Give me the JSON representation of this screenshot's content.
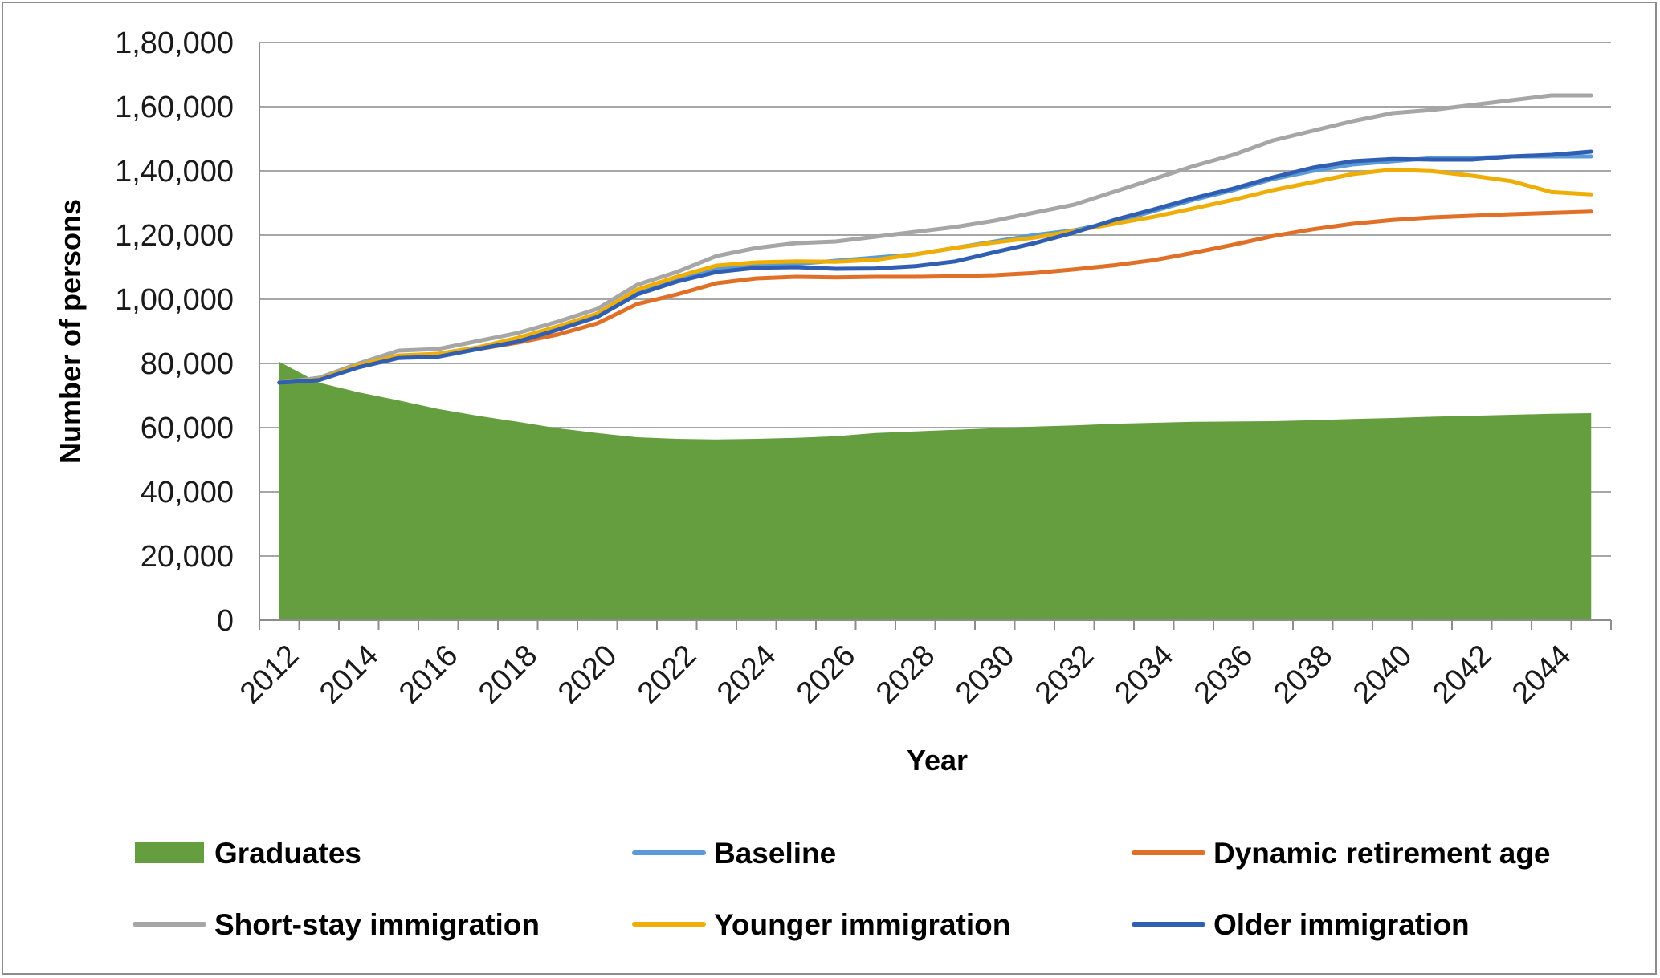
{
  "chart_data": {
    "type": "line",
    "title": "",
    "xlabel": "Year",
    "ylabel": "Number of persons",
    "x": [
      2012,
      2013,
      2014,
      2015,
      2016,
      2017,
      2018,
      2019,
      2020,
      2021,
      2022,
      2023,
      2024,
      2025,
      2026,
      2027,
      2028,
      2029,
      2030,
      2031,
      2032,
      2033,
      2034,
      2035,
      2036,
      2037,
      2038,
      2039,
      2040,
      2041,
      2042,
      2043,
      2044,
      2045
    ],
    "x_tick_labels": [
      "2012",
      "2014",
      "2016",
      "2018",
      "2020",
      "2022",
      "2024",
      "2026",
      "2028",
      "2030",
      "2032",
      "2034",
      "2036",
      "2038",
      "2040",
      "2042",
      "2044"
    ],
    "y_ticks": [
      0,
      20000,
      40000,
      60000,
      80000,
      100000,
      120000,
      140000,
      160000,
      180000
    ],
    "y_tick_labels": [
      "0",
      "20,000",
      "40,000",
      "60,000",
      "80,000",
      "1,00,000",
      "1,20,000",
      "1,40,000",
      "1,60,000",
      "1,80,000"
    ],
    "ylim": [
      0,
      180000
    ],
    "grid": true,
    "legend_position": "bottom",
    "series": [
      {
        "name": "Graduates",
        "kind": "area",
        "color": "#659e3f",
        "values": [
          80500,
          74000,
          71000,
          68500,
          65800,
          63700,
          61800,
          59800,
          58300,
          57000,
          56500,
          56300,
          56500,
          56800,
          57300,
          58300,
          58800,
          59300,
          59800,
          60300,
          60700,
          61200,
          61500,
          61800,
          61900,
          62000,
          62300,
          62700,
          63000,
          63400,
          63700,
          64000,
          64300,
          64500
        ]
      },
      {
        "name": "Baseline",
        "kind": "line",
        "color": "#5b9bd5",
        "values": [
          74000,
          75500,
          79500,
          82000,
          83000,
          85000,
          87500,
          91000,
          95500,
          102500,
          106500,
          109500,
          110500,
          111000,
          112000,
          113000,
          114000,
          116000,
          118000,
          120000,
          121500,
          124000,
          127500,
          131000,
          134000,
          137500,
          140000,
          142000,
          143000,
          144000,
          144000,
          144500,
          144500,
          144500
        ]
      },
      {
        "name": "Dynamic retirement age",
        "kind": "line",
        "color": "#e07028",
        "values": [
          74000,
          75000,
          79000,
          82000,
          82500,
          84500,
          86500,
          89000,
          92500,
          98500,
          101500,
          105000,
          106500,
          107000,
          106800,
          107000,
          107000,
          107200,
          107500,
          108200,
          109300,
          110600,
          112200,
          114500,
          117000,
          119700,
          121800,
          123500,
          124700,
          125500,
          126000,
          126500,
          126900,
          127300
        ]
      },
      {
        "name": "Short-stay immigration",
        "kind": "line",
        "color": "#a6a6a6",
        "values": [
          74000,
          75500,
          80000,
          84000,
          84500,
          87000,
          89500,
          93000,
          97000,
          104500,
          108500,
          113500,
          116000,
          117500,
          118000,
          119500,
          121000,
          122500,
          124500,
          127000,
          129500,
          133500,
          137500,
          141500,
          145000,
          149500,
          152500,
          155500,
          158000,
          159000,
          160500,
          162000,
          163500,
          163500
        ]
      },
      {
        "name": "Younger immigration",
        "kind": "line",
        "color": "#efae06",
        "values": [
          74000,
          75000,
          79500,
          82500,
          83000,
          85000,
          88000,
          91500,
          95500,
          103000,
          107000,
          110500,
          111500,
          111800,
          111700,
          112300,
          114000,
          116000,
          117700,
          119200,
          121300,
          123500,
          125700,
          128300,
          131000,
          134000,
          136500,
          139000,
          140400,
          139900,
          138500,
          136800,
          133400,
          132700
        ]
      },
      {
        "name": "Older immigration",
        "kind": "line",
        "color": "#2f5eb2",
        "values": [
          74000,
          74800,
          78800,
          81700,
          82100,
          84500,
          86800,
          90500,
          94500,
          101500,
          105500,
          108500,
          109800,
          110000,
          109500,
          109600,
          110300,
          111800,
          114700,
          117500,
          120800,
          124700,
          128000,
          131500,
          134500,
          138000,
          141000,
          143000,
          143700,
          143500,
          143500,
          144500,
          145000,
          146000
        ]
      }
    ]
  }
}
